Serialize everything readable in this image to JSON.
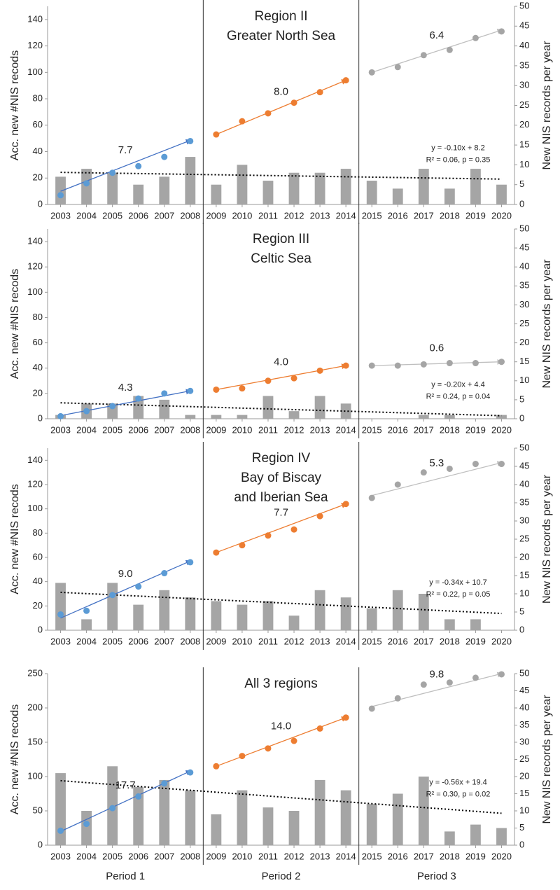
{
  "chart_data": [
    {
      "type": "combo",
      "title": [
        "Region II",
        "Greater North Sea"
      ],
      "ylabel": "Acc. new #NIS recods",
      "y2label": "New NIS records per year",
      "x": [
        2003,
        2004,
        2005,
        2006,
        2007,
        2008,
        2009,
        2010,
        2011,
        2012,
        2013,
        2014,
        2015,
        2016,
        2017,
        2018,
        2019,
        2020
      ],
      "xlim": [
        2002.5,
        2020.5
      ],
      "xticks": [
        2003,
        2004,
        2005,
        2006,
        2007,
        2008,
        2009,
        2010,
        2011,
        2012,
        2013,
        2014,
        2015,
        2016,
        2017,
        2018,
        2019,
        2020
      ],
      "ylim": [
        0,
        150
      ],
      "yticks": [
        0,
        20,
        40,
        60,
        80,
        100,
        120,
        140
      ],
      "y2lim": [
        0,
        50
      ],
      "y2ticks": [
        0,
        5,
        10,
        15,
        20,
        25,
        30,
        35,
        40,
        45,
        50
      ],
      "bars": {
        "axis": "y2",
        "color": "#a5a5a5",
        "values": [
          7,
          9,
          8,
          5,
          7,
          12,
          5,
          10,
          6,
          8,
          8,
          9,
          6,
          4,
          9,
          4,
          9,
          5
        ]
      },
      "points": {
        "colors": [
          "#5b9bd5",
          "#ed7d31",
          "#a5a5a5"
        ],
        "values": [
          7,
          16,
          24,
          29,
          36,
          48,
          53,
          63,
          69,
          77,
          85,
          94,
          100,
          104,
          113,
          117,
          126,
          131
        ]
      },
      "trends": [
        {
          "color": "#4472c4",
          "x": [
            2003,
            2008
          ],
          "values": [
            10,
            48.5
          ],
          "label": "7.7"
        },
        {
          "color": "#ed7d31",
          "x": [
            2009,
            2014
          ],
          "values": [
            53,
            94
          ],
          "label": "8.0"
        },
        {
          "color": "#bfbfbf",
          "x": [
            2015,
            2020
          ],
          "values": [
            100,
            132
          ],
          "label": "6.4"
        }
      ],
      "regression": {
        "axis": "y2",
        "color": "#000000",
        "x": [
          2003,
          2020
        ],
        "values": [
          8.1,
          6.4
        ],
        "equation": [
          "y = -0.10x + 8.2",
          "R² = 0.06, p = 0.35"
        ]
      }
    },
    {
      "type": "combo",
      "title": [
        "Region III",
        "Celtic Sea"
      ],
      "ylabel": "Acc. new #NIS recods",
      "y2label": "New NIS records per year",
      "x": [
        2003,
        2004,
        2005,
        2006,
        2007,
        2008,
        2009,
        2010,
        2011,
        2012,
        2013,
        2014,
        2015,
        2016,
        2017,
        2018,
        2019,
        2020
      ],
      "xlim": [
        2002.5,
        2020.5
      ],
      "xticks": [
        2003,
        2004,
        2005,
        2006,
        2007,
        2008,
        2009,
        2010,
        2011,
        2012,
        2013,
        2014,
        2015,
        2016,
        2017,
        2018,
        2019,
        2020
      ],
      "ylim": [
        0,
        150
      ],
      "yticks": [
        0,
        20,
        40,
        60,
        80,
        100,
        120,
        140
      ],
      "y2lim": [
        0,
        50
      ],
      "y2ticks": [
        0,
        5,
        10,
        15,
        20,
        25,
        30,
        35,
        40,
        45,
        50
      ],
      "bars": {
        "axis": "y2",
        "color": "#a5a5a5",
        "values": [
          1,
          4,
          4,
          6,
          5,
          1,
          1,
          1,
          6,
          2,
          6,
          4,
          0,
          0,
          1,
          1,
          0,
          1
        ]
      },
      "points": {
        "colors": [
          "#5b9bd5",
          "#ed7d31",
          "#a5a5a5"
        ],
        "values": [
          2,
          6,
          10,
          16,
          20,
          22,
          23,
          24,
          30,
          32,
          38,
          42,
          42,
          42,
          43,
          44,
          44,
          45
        ]
      },
      "trends": [
        {
          "color": "#4472c4",
          "x": [
            2003,
            2008
          ],
          "values": [
            2.5,
            22
          ],
          "label": "4.3"
        },
        {
          "color": "#ed7d31",
          "x": [
            2009,
            2014
          ],
          "values": [
            23,
            42
          ],
          "label": "4.0"
        },
        {
          "color": "#bfbfbf",
          "x": [
            2015,
            2020
          ],
          "values": [
            42,
            45
          ],
          "label": "0.6"
        }
      ],
      "regression": {
        "axis": "y2",
        "color": "#000000",
        "x": [
          2003,
          2020
        ],
        "values": [
          4.2,
          0.8
        ],
        "equation": [
          "y = -0.20x + 4.4",
          "R² = 0.24, p = 0.04"
        ]
      }
    },
    {
      "type": "combo",
      "title": [
        "Region IV",
        "Bay of Biscay",
        "and Iberian Sea"
      ],
      "ylabel": "Acc. new #NIS recods",
      "y2label": "New NIS records per year",
      "x": [
        2003,
        2004,
        2005,
        2006,
        2007,
        2008,
        2009,
        2010,
        2011,
        2012,
        2013,
        2014,
        2015,
        2016,
        2017,
        2018,
        2019,
        2020
      ],
      "xlim": [
        2002.5,
        2020.5
      ],
      "xticks": [
        2003,
        2004,
        2005,
        2006,
        2007,
        2008,
        2009,
        2010,
        2011,
        2012,
        2013,
        2014,
        2015,
        2016,
        2017,
        2018,
        2019,
        2020
      ],
      "ylim": [
        0,
        150
      ],
      "yticks": [
        0,
        20,
        40,
        60,
        80,
        100,
        120,
        140
      ],
      "y2lim": [
        0,
        50
      ],
      "y2ticks": [
        0,
        5,
        10,
        15,
        20,
        25,
        30,
        35,
        40,
        45,
        50
      ],
      "bars": {
        "axis": "y2",
        "color": "#a5a5a5",
        "values": [
          13,
          3,
          13,
          7,
          11,
          9,
          8,
          7,
          8,
          4,
          11,
          9,
          6,
          11,
          10,
          3,
          3,
          0
        ]
      },
      "points": {
        "colors": [
          "#5b9bd5",
          "#ed7d31",
          "#a5a5a5"
        ],
        "values": [
          13,
          16,
          29,
          36,
          47,
          56,
          64,
          70,
          78,
          83,
          94,
          104,
          109,
          120,
          130,
          133,
          137,
          137
        ]
      },
      "trends": [
        {
          "color": "#4472c4",
          "x": [
            2003,
            2008
          ],
          "values": [
            10,
            57
          ],
          "label": "9.0"
        },
        {
          "color": "#ed7d31",
          "x": [
            2009,
            2014
          ],
          "values": [
            64,
            104
          ],
          "label": "7.7"
        },
        {
          "color": "#bfbfbf",
          "x": [
            2015,
            2020
          ],
          "values": [
            111,
            138
          ],
          "label": "5.3"
        }
      ],
      "regression": {
        "axis": "y2",
        "color": "#000000",
        "x": [
          2003,
          2020
        ],
        "values": [
          10.4,
          4.6
        ],
        "equation": [
          "y = -0.34x + 10.7",
          "R² = 0.22, p = 0.05"
        ]
      }
    },
    {
      "type": "combo",
      "title": [
        "All 3 regions"
      ],
      "ylabel": "Acc. new #NIS recods",
      "y2label": "New NIS records per year",
      "x": [
        2003,
        2004,
        2005,
        2006,
        2007,
        2008,
        2009,
        2010,
        2011,
        2012,
        2013,
        2014,
        2015,
        2016,
        2017,
        2018,
        2019,
        2020
      ],
      "xlim": [
        2002.5,
        2020.5
      ],
      "xticks": [
        2003,
        2004,
        2005,
        2006,
        2007,
        2008,
        2009,
        2010,
        2011,
        2012,
        2013,
        2014,
        2015,
        2016,
        2017,
        2018,
        2019,
        2020
      ],
      "ylim": [
        0,
        250
      ],
      "yticks": [
        0,
        50,
        100,
        150,
        200,
        250
      ],
      "y2lim": [
        0,
        50
      ],
      "y2ticks": [
        0,
        5,
        10,
        15,
        20,
        25,
        30,
        35,
        40,
        45,
        50
      ],
      "bars": {
        "axis": "y2",
        "color": "#a5a5a5",
        "values": [
          21,
          10,
          23,
          17,
          19,
          16,
          9,
          16,
          11,
          10,
          19,
          16,
          12,
          15,
          20,
          4,
          6,
          5
        ]
      },
      "points": {
        "colors": [
          "#5b9bd5",
          "#ed7d31",
          "#a5a5a5"
        ],
        "values": [
          21,
          31,
          54,
          71,
          90,
          106,
          115,
          130,
          141,
          152,
          170,
          186,
          199,
          214,
          234,
          237,
          244,
          249
        ]
      },
      "trends": [
        {
          "color": "#4472c4",
          "x": [
            2003,
            2008
          ],
          "values": [
            20,
            108
          ],
          "label": "17.7"
        },
        {
          "color": "#ed7d31",
          "x": [
            2009,
            2014
          ],
          "values": [
            115,
            186
          ],
          "label": "14.0"
        },
        {
          "color": "#bfbfbf",
          "x": [
            2015,
            2020
          ],
          "values": [
            202,
            250
          ],
          "label": "9.8"
        }
      ],
      "regression": {
        "axis": "y2",
        "color": "#000000",
        "x": [
          2003,
          2020
        ],
        "values": [
          18.8,
          9.3
        ],
        "equation": [
          "y = -0.56x + 19.4",
          "R² = 0.30, p = 0.02"
        ]
      },
      "period_labels": [
        "Period 1",
        "Period 2",
        "Period 3"
      ]
    }
  ]
}
